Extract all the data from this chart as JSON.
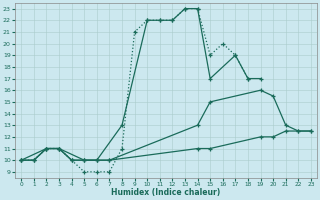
{
  "xlabel": "Humidex (Indice chaleur)",
  "bg_color": "#cce8ef",
  "grid_color": "#aacccc",
  "line_color": "#1a6b5a",
  "xlim": [
    -0.5,
    23.5
  ],
  "ylim": [
    8.5,
    23.5
  ],
  "xtick_vals": [
    0,
    1,
    2,
    3,
    4,
    5,
    6,
    7,
    8,
    9,
    10,
    11,
    12,
    13,
    14,
    15,
    16,
    17,
    18,
    19,
    20,
    21,
    22,
    23
  ],
  "ytick_vals": [
    9,
    10,
    11,
    12,
    13,
    14,
    15,
    16,
    17,
    18,
    19,
    20,
    21,
    22,
    23
  ],
  "curve1_x": [
    0,
    1,
    2,
    3,
    4,
    5,
    6,
    7,
    8,
    9,
    10,
    11,
    12,
    13,
    14,
    15,
    16,
    17,
    18
  ],
  "curve1_y": [
    10,
    10,
    11,
    11,
    10,
    9,
    9,
    9,
    11,
    21,
    22,
    22,
    22,
    23,
    23,
    19,
    20,
    19,
    17
  ],
  "curve1_style": "dotted",
  "curve2_x": [
    0,
    2,
    3,
    5,
    6,
    8,
    10,
    11,
    12,
    13,
    14,
    15,
    17,
    18,
    19
  ],
  "curve2_y": [
    10,
    11,
    11,
    10,
    10,
    13,
    22,
    22,
    22,
    23,
    23,
    17,
    19,
    17,
    17
  ],
  "curve2_style": "solid",
  "curve3_x": [
    0,
    1,
    2,
    3,
    4,
    5,
    6,
    7,
    14,
    15,
    19,
    20,
    21,
    22,
    23
  ],
  "curve3_y": [
    10,
    10,
    11,
    11,
    10,
    10,
    10,
    10,
    13,
    15,
    16,
    15.5,
    13,
    12.5,
    12.5
  ],
  "curve3_style": "solid",
  "curve4_x": [
    0,
    1,
    2,
    3,
    4,
    5,
    6,
    7,
    14,
    15,
    19,
    20,
    21,
    22,
    23
  ],
  "curve4_y": [
    10,
    10,
    11,
    11,
    10,
    10,
    10,
    10,
    11,
    11,
    12,
    12,
    12.5,
    12.5,
    12.5
  ],
  "curve4_style": "solid"
}
